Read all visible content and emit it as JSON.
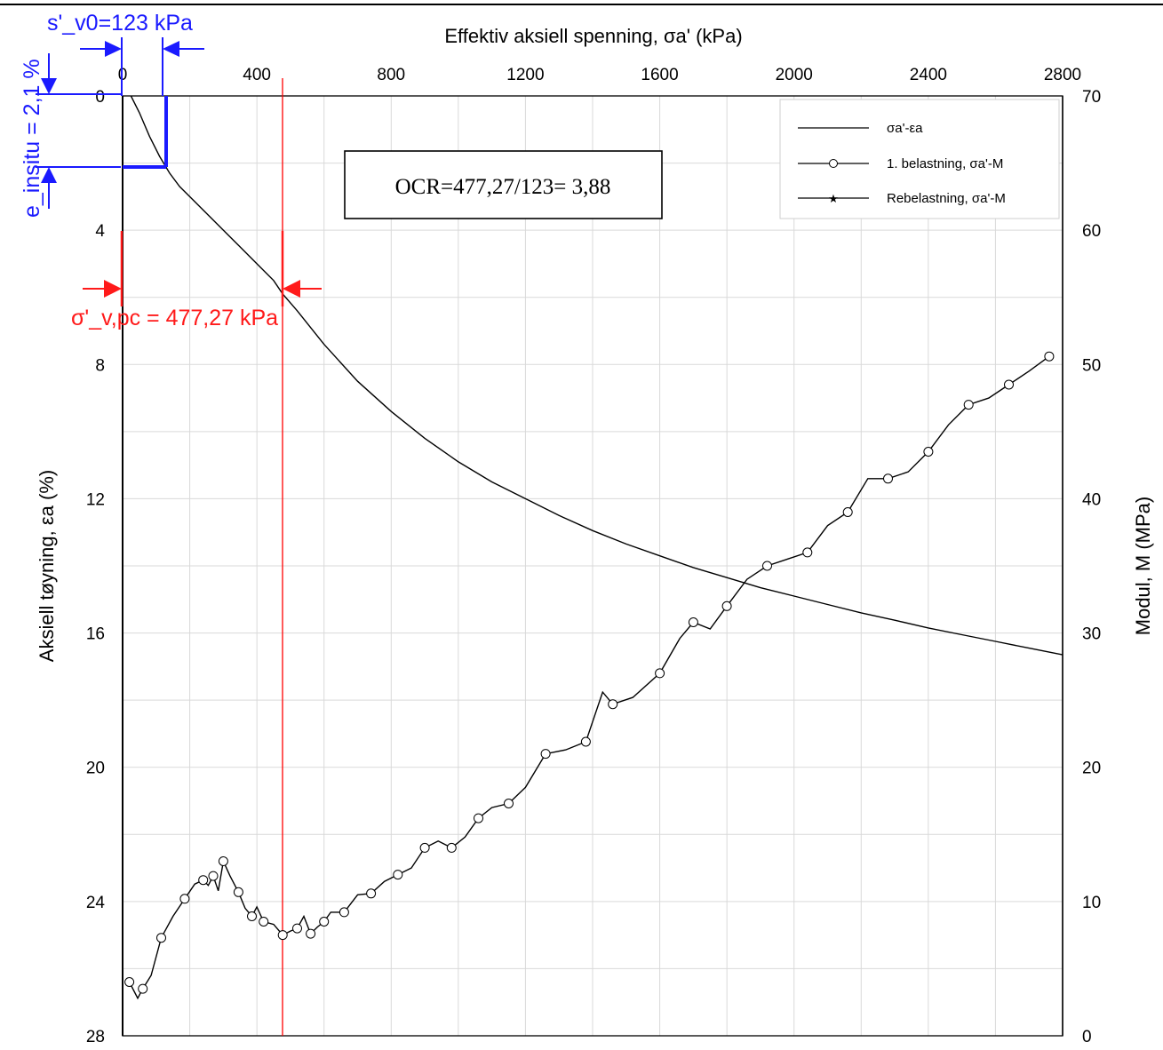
{
  "chart_data": {
    "type": "line",
    "x_axis": {
      "label": "Effektiv aksiell spenning, σa'  (kPa)",
      "position": "top",
      "range": [
        0,
        2800
      ],
      "ticks": [
        "0",
        "400",
        "800",
        "1200",
        "1600",
        "2000",
        "2400",
        "2800"
      ]
    },
    "y_left_axis": {
      "label": "Aksiell tøyning, εa  (%)",
      "range": [
        0,
        28
      ],
      "inverted": true,
      "ticks": [
        "0",
        "4",
        "8",
        "12",
        "16",
        "20",
        "24",
        "28"
      ]
    },
    "y_right_axis": {
      "label": "Modul, M  (MPa)",
      "range": [
        0,
        70
      ],
      "ticks": [
        "70",
        "60",
        "50",
        "40",
        "30",
        "20",
        "10",
        "0"
      ]
    },
    "grid": true,
    "legend": {
      "placement": "top-right",
      "entries": [
        {
          "label": "σa'-εa",
          "marker": "none"
        },
        {
          "label": "1. belastning, σa'-M",
          "marker": "circle"
        },
        {
          "label": "Rebelastning, σa'-M",
          "marker": "star"
        }
      ]
    },
    "series": [
      {
        "name": "σa'-εa",
        "axis": "left",
        "x": [
          25,
          50,
          80,
          110,
          140,
          170,
          200,
          250,
          300,
          350,
          400,
          450,
          477,
          520,
          600,
          700,
          800,
          900,
          1000,
          1100,
          1200,
          1300,
          1400,
          1500,
          1600,
          1700,
          1800,
          1900,
          2000,
          2100,
          2200,
          2300,
          2400,
          2500,
          2600,
          2700,
          2800
        ],
        "y": [
          0.0,
          0.5,
          1.2,
          1.8,
          2.3,
          2.7,
          3.0,
          3.5,
          4.0,
          4.5,
          5.0,
          5.5,
          5.9,
          6.4,
          7.4,
          8.5,
          9.4,
          10.2,
          10.9,
          11.5,
          12.0,
          12.5,
          12.95,
          13.35,
          13.7,
          14.05,
          14.35,
          14.65,
          14.9,
          15.15,
          15.4,
          15.62,
          15.85,
          16.05,
          16.25,
          16.45,
          16.65
        ]
      },
      {
        "name": "1. belastning, σa'-M",
        "axis": "right",
        "x": [
          20,
          45,
          60,
          85,
          115,
          150,
          185,
          215,
          240,
          255,
          270,
          285,
          300,
          320,
          345,
          365,
          385,
          400,
          420,
          450,
          477,
          500,
          520,
          540,
          560,
          580,
          600,
          620,
          660,
          700,
          740,
          780,
          820,
          860,
          900,
          940,
          980,
          1020,
          1060,
          1100,
          1150,
          1200,
          1260,
          1320,
          1380,
          1430,
          1460,
          1520,
          1600,
          1660,
          1700,
          1750,
          1800,
          1860,
          1920,
          1980,
          2040,
          2100,
          2160,
          2220,
          2280,
          2340,
          2400,
          2460,
          2520,
          2580,
          2640,
          2700,
          2760
        ],
        "y": [
          4.0,
          2.8,
          3.5,
          4.5,
          7.3,
          8.9,
          10.2,
          11.3,
          11.6,
          11.2,
          11.9,
          10.8,
          13.0,
          11.9,
          10.7,
          9.5,
          8.9,
          9.6,
          8.5,
          8.3,
          7.5,
          7.8,
          8.0,
          8.9,
          7.6,
          8.1,
          8.5,
          9.2,
          9.2,
          10.5,
          10.6,
          11.5,
          12.0,
          12.5,
          14.0,
          14.5,
          14.0,
          14.8,
          16.2,
          17.0,
          17.3,
          18.5,
          21.0,
          21.3,
          21.9,
          25.6,
          24.7,
          25.2,
          27.0,
          29.6,
          30.8,
          30.3,
          32.0,
          34.0,
          35.0,
          35.5,
          36.0,
          38.0,
          39.0,
          41.5,
          41.5,
          42.0,
          43.5,
          45.5,
          47.0,
          47.5,
          48.5,
          49.5,
          50.6
        ]
      },
      {
        "name": "Rebelastning, σa'-M",
        "axis": "right",
        "x": [],
        "y": []
      }
    ],
    "annotations": [
      {
        "text": "s'_v0=123 kPa",
        "color": "#1a1aff",
        "stress": 123
      },
      {
        "text": "e_insitu = 2,1 %",
        "color": "#1a1aff",
        "strain": 2.1
      },
      {
        "text": "σ'_v,pc = 477,27 kPa",
        "color": "#ff1a1a",
        "stress": 477.27
      },
      {
        "text": "OCR=477,27/123= 3,88",
        "color": "#000000"
      }
    ]
  }
}
